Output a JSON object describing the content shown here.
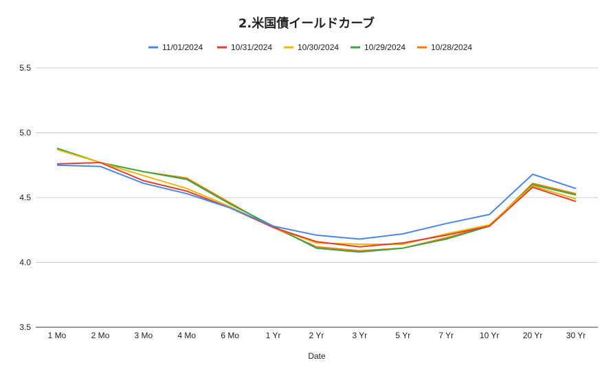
{
  "chart_data": {
    "type": "line",
    "title": "2.米国債イールドカーブ",
    "xlabel": "Date",
    "ylabel": "",
    "categories": [
      "1 Mo",
      "2 Mo",
      "3 Mo",
      "4 Mo",
      "6 Mo",
      "1 Yr",
      "2 Yr",
      "3 Yr",
      "5 Yr",
      "7 Yr",
      "10 Yr",
      "20 Yr",
      "30 Yr"
    ],
    "ylim": [
      3.5,
      5.5
    ],
    "yticks": [
      "5.5",
      "5.0",
      "4.5",
      "4.0",
      "3.5"
    ],
    "grid": true,
    "legend_position": "top",
    "series": [
      {
        "name": "11/01/2024",
        "color": "#4a86e8",
        "values": [
          4.75,
          4.74,
          4.61,
          4.53,
          4.42,
          4.28,
          4.21,
          4.18,
          4.22,
          4.3,
          4.37,
          4.68,
          4.57
        ]
      },
      {
        "name": "10/31/2024",
        "color": "#e03e2e",
        "values": [
          4.76,
          4.77,
          4.63,
          4.55,
          4.42,
          4.27,
          4.16,
          4.12,
          4.15,
          4.21,
          4.28,
          4.58,
          4.47
        ]
      },
      {
        "name": "10/30/2024",
        "color": "#f4b400",
        "values": [
          4.87,
          4.77,
          4.67,
          4.57,
          4.43,
          4.27,
          4.15,
          4.14,
          4.14,
          4.22,
          4.29,
          4.59,
          4.49
        ]
      },
      {
        "name": "10/29/2024",
        "color": "#3aa447",
        "values": [
          4.88,
          4.77,
          4.7,
          4.64,
          4.45,
          4.28,
          4.11,
          4.08,
          4.11,
          4.18,
          4.28,
          4.6,
          4.52
        ]
      },
      {
        "name": "10/28/2024",
        "color": "#f57c00",
        "values": [
          4.88,
          4.77,
          4.7,
          4.65,
          4.46,
          4.27,
          4.12,
          4.09,
          4.11,
          4.19,
          4.28,
          4.61,
          4.53
        ]
      }
    ]
  }
}
